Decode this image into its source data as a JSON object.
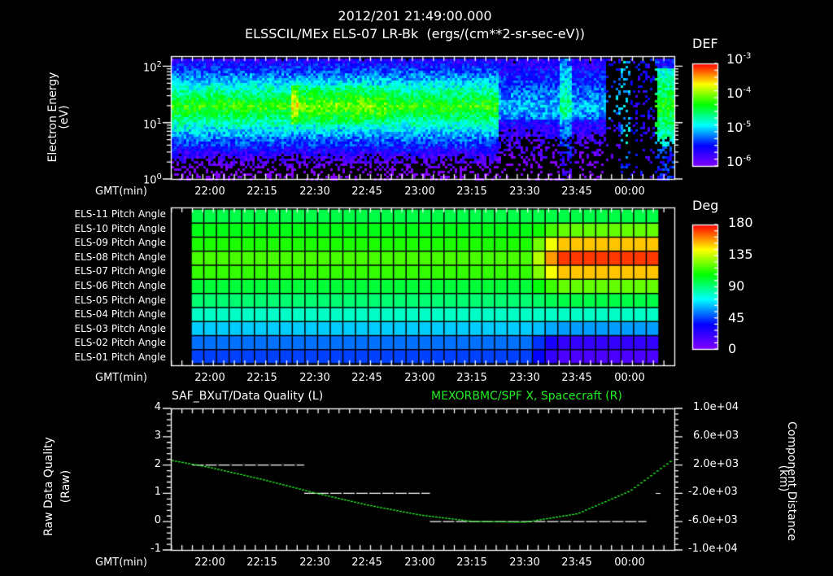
{
  "header": {
    "timestamp": "2012/201 21:49:00.000",
    "subtitle": "ELSSCIL/MEx ELS-07 LR-Bk  (ergs/(cm**2-sr-sec-eV))"
  },
  "time_axis": {
    "label": "GMT(min)",
    "ticks": [
      "22:00",
      "22:15",
      "22:30",
      "22:45",
      "23:00",
      "23:15",
      "23:30",
      "23:45",
      "00:00"
    ]
  },
  "panel_energy": {
    "ylabel": "Electron Energy",
    "yunit": "(eV)",
    "yticks": [
      {
        "base": "10",
        "exp": "2"
      },
      {
        "base": "10",
        "exp": "1"
      },
      {
        "base": "10",
        "exp": "0"
      }
    ],
    "colorbar": {
      "title": "DEF",
      "ticks": [
        {
          "base": "10",
          "exp": "-3"
        },
        {
          "base": "10",
          "exp": "-4"
        },
        {
          "base": "10",
          "exp": "-5"
        },
        {
          "base": "10",
          "exp": "-6"
        }
      ]
    }
  },
  "panel_pitch": {
    "rows": [
      "ELS-11 Pitch Angle",
      "ELS-10 Pitch Angle",
      "ELS-09 Pitch Angle",
      "ELS-08 Pitch Angle",
      "ELS-07 Pitch Angle",
      "ELS-06 Pitch Angle",
      "ELS-05 Pitch Angle",
      "ELS-04 Pitch Angle",
      "ELS-03 Pitch Angle",
      "ELS-02 Pitch Angle",
      "ELS-01 Pitch Angle"
    ],
    "colorbar": {
      "title": "Deg",
      "ticks": [
        "180",
        "135",
        "90",
        "45",
        "0"
      ]
    }
  },
  "panel_quality": {
    "left_title": "SAF_BXuT/Data Quality (L)",
    "right_title": "MEXORBMC/SPF X, Spacecraft (R)",
    "right_title_color": "#22ee22",
    "ylabel_left": "Raw Data Quality",
    "yunit_left": "(Raw)",
    "yticks_left": [
      "4",
      "3",
      "2",
      "1",
      "0",
      "-1"
    ],
    "ylabel_right": "Component Distance",
    "yunit_right": "(km)",
    "yticks_right": [
      "1.0e+04",
      "6.0e+03",
      "2.0e+03",
      "-2.0e+03",
      "-6.0e+03",
      "-1.0e+04"
    ]
  },
  "chart_data": [
    {
      "type": "heatmap",
      "title": "ELSSCIL/MEx ELS-07 LR-Bk (ergs/(cm**2-sr-sec-eV))",
      "xlabel": "GMT(min)",
      "ylabel": "Electron Energy (eV)",
      "x_range": [
        "21:49",
        "00:10"
      ],
      "y_range": [
        1,
        150
      ],
      "y_scale": "log",
      "colorbar": {
        "label": "DEF",
        "range": [
          1e-06,
          0.001
        ],
        "scale": "log"
      },
      "description": "Green band (~1e-4) at 10-60 eV from 21:49 to ~23:20; yellow enhancement near 22:25-22:45; after 23:20 sparse/low flux with gaps around 23:50-23:58; enhanced green band at 5-60 eV from ~00:03 onward"
    },
    {
      "type": "heatmap",
      "title": "Pitch Angle",
      "xlabel": "GMT(min)",
      "y_categories": [
        "ELS-11",
        "ELS-10",
        "ELS-09",
        "ELS-08",
        "ELS-07",
        "ELS-06",
        "ELS-05",
        "ELS-04",
        "ELS-03",
        "ELS-02",
        "ELS-01"
      ],
      "colorbar": {
        "label": "Deg",
        "range": [
          0,
          180
        ]
      },
      "before_2330_deg": [
        98,
        105,
        112,
        118,
        115,
        100,
        92,
        80,
        65,
        52,
        45
      ],
      "after_2335_deg": [
        98,
        122,
        152,
        172,
        152,
        122,
        98,
        80,
        58,
        22,
        15
      ]
    },
    {
      "type": "line",
      "xlabel": "GMT(min)",
      "series": [
        {
          "name": "SAF_BXuT/Data Quality (L)",
          "axis": "left",
          "ylim": [
            -1,
            4
          ],
          "segments": [
            {
              "from": "21:55",
              "to": "22:27",
              "y": 2
            },
            {
              "from": "22:27",
              "to": "23:03",
              "y": 1
            },
            {
              "from": "23:03",
              "to": "00:05",
              "y": 0
            }
          ]
        },
        {
          "name": "MEXORBMC/SPF X, Spacecraft (R)",
          "axis": "right",
          "ylim": [
            -10000,
            10000
          ],
          "color": "#22ee22",
          "x": [
            "21:49",
            "22:00",
            "22:15",
            "22:30",
            "22:45",
            "23:00",
            "23:15",
            "23:30",
            "23:45",
            "00:00",
            "00:10"
          ],
          "y": [
            2700,
            1700,
            0,
            -1900,
            -3600,
            -5000,
            -5900,
            -6000,
            -4800,
            -1600,
            2000
          ]
        }
      ]
    }
  ]
}
